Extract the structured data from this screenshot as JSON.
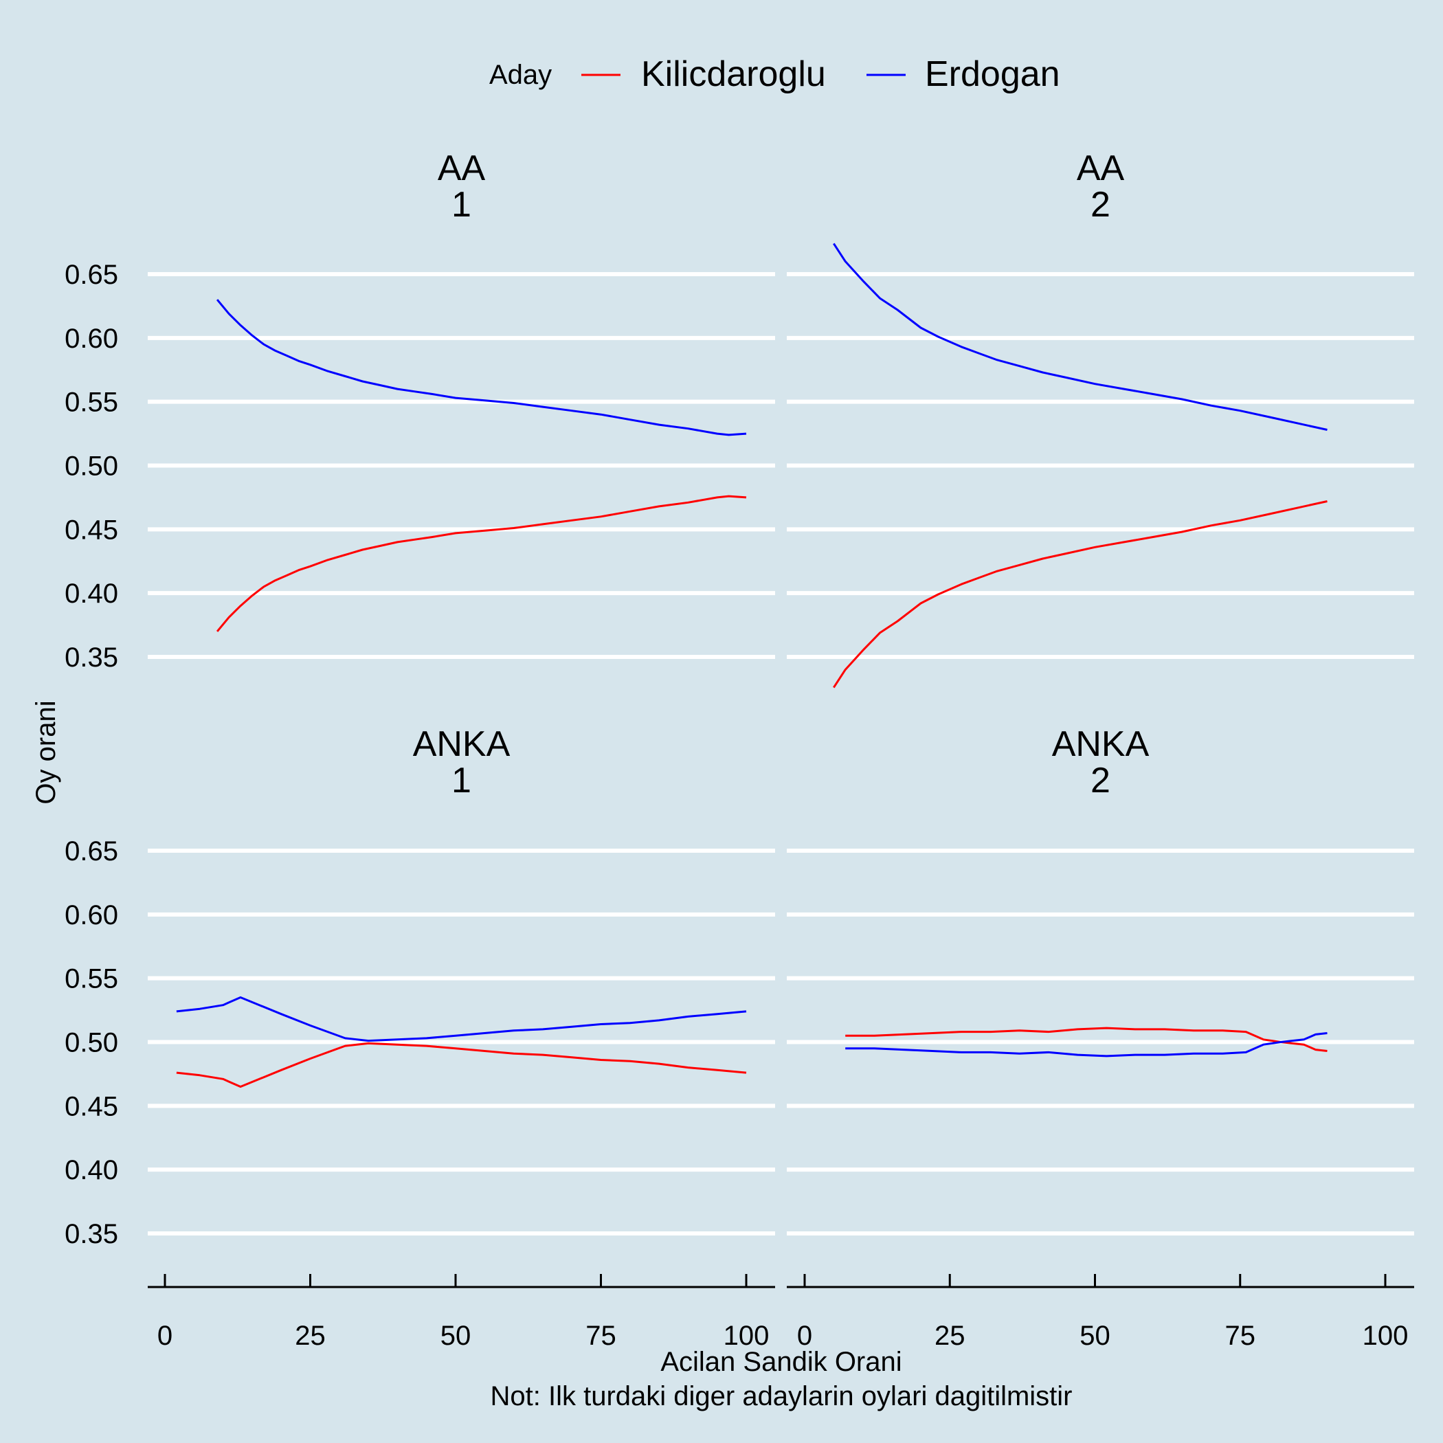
{
  "chart_data": {
    "type": "line",
    "legend": {
      "title": "Aday",
      "position": "top",
      "entries": [
        {
          "name": "Kilicdaroglu",
          "color": "#ff0000"
        },
        {
          "name": "Erdogan",
          "color": "#0000ff"
        }
      ]
    },
    "xlabel": "Acilan Sandik Orani",
    "ylabel": "Oy orani",
    "caption": "Not: Ilk turdaki diger adaylarin oylari dagitilmistir",
    "xlim": [
      0,
      100
    ],
    "ylim": [
      0.35,
      0.65
    ],
    "x_ticks": [
      "0",
      "25",
      "50",
      "75",
      "100"
    ],
    "y_ticks": [
      "0.35",
      "0.40",
      "0.45",
      "0.50",
      "0.55",
      "0.60",
      "0.65"
    ],
    "grid": "horizontal major",
    "panels": [
      {
        "source": "AA",
        "round": "1",
        "series": [
          {
            "name": "Kilicdaroglu",
            "color": "#ff0000",
            "x": [
              9,
              11,
              13,
              15,
              17,
              19,
              21,
              23,
              25,
              28,
              31,
              34,
              37,
              40,
              43,
              46,
              50,
              55,
              60,
              65,
              70,
              75,
              80,
              85,
              90,
              95,
              97,
              100
            ],
            "y": [
              0.37,
              0.381,
              0.39,
              0.398,
              0.405,
              0.41,
              0.414,
              0.418,
              0.421,
              0.426,
              0.43,
              0.434,
              0.437,
              0.44,
              0.442,
              0.444,
              0.447,
              0.449,
              0.451,
              0.454,
              0.457,
              0.46,
              0.464,
              0.468,
              0.471,
              0.475,
              0.476,
              0.475
            ]
          },
          {
            "name": "Erdogan",
            "color": "#0000ff",
            "x": [
              9,
              11,
              13,
              15,
              17,
              19,
              21,
              23,
              25,
              28,
              31,
              34,
              37,
              40,
              43,
              46,
              50,
              55,
              60,
              65,
              70,
              75,
              80,
              85,
              90,
              95,
              97,
              100
            ],
            "y": [
              0.63,
              0.619,
              0.61,
              0.602,
              0.595,
              0.59,
              0.586,
              0.582,
              0.579,
              0.574,
              0.57,
              0.566,
              0.563,
              0.56,
              0.558,
              0.556,
              0.553,
              0.551,
              0.549,
              0.546,
              0.543,
              0.54,
              0.536,
              0.532,
              0.529,
              0.525,
              0.524,
              0.525
            ]
          }
        ]
      },
      {
        "source": "AA",
        "round": "2",
        "series": [
          {
            "name": "Kilicdaroglu",
            "color": "#ff0000",
            "x": [
              5,
              7,
              10,
              13,
              16,
              20,
              23,
              27,
              30,
              33,
              37,
              41,
              45,
              50,
              55,
              60,
              65,
              70,
              75,
              80,
              85,
              90
            ],
            "y": [
              0.326,
              0.34,
              0.355,
              0.369,
              0.378,
              0.392,
              0.399,
              0.407,
              0.412,
              0.417,
              0.422,
              0.427,
              0.431,
              0.436,
              0.44,
              0.444,
              0.448,
              0.453,
              0.457,
              0.462,
              0.467,
              0.472
            ]
          },
          {
            "name": "Erdogan",
            "color": "#0000ff",
            "x": [
              5,
              7,
              10,
              13,
              16,
              20,
              23,
              27,
              30,
              33,
              37,
              41,
              45,
              50,
              55,
              60,
              65,
              70,
              75,
              80,
              85,
              90
            ],
            "y": [
              0.674,
              0.66,
              0.645,
              0.631,
              0.622,
              0.608,
              0.601,
              0.593,
              0.588,
              0.583,
              0.578,
              0.573,
              0.569,
              0.564,
              0.56,
              0.556,
              0.552,
              0.547,
              0.543,
              0.538,
              0.533,
              0.528
            ]
          }
        ]
      },
      {
        "source": "ANKA",
        "round": "1",
        "series": [
          {
            "name": "Kilicdaroglu",
            "color": "#ff0000",
            "x": [
              2,
              6,
              10,
              11,
              13,
              20,
              25,
              31,
              35,
              40,
              45,
              50,
              55,
              60,
              65,
              70,
              75,
              80,
              85,
              90,
              95,
              100
            ],
            "y": [
              0.476,
              0.474,
              0.471,
              0.469,
              0.465,
              0.478,
              0.487,
              0.497,
              0.499,
              0.498,
              0.497,
              0.495,
              0.493,
              0.491,
              0.49,
              0.488,
              0.486,
              0.485,
              0.483,
              0.48,
              0.478,
              0.476
            ]
          },
          {
            "name": "Erdogan",
            "color": "#0000ff",
            "x": [
              2,
              6,
              10,
              11,
              13,
              20,
              25,
              31,
              35,
              40,
              45,
              50,
              55,
              60,
              65,
              70,
              75,
              80,
              85,
              90,
              95,
              100
            ],
            "y": [
              0.524,
              0.526,
              0.529,
              0.531,
              0.535,
              0.522,
              0.513,
              0.503,
              0.501,
              0.502,
              0.503,
              0.505,
              0.507,
              0.509,
              0.51,
              0.512,
              0.514,
              0.515,
              0.517,
              0.52,
              0.522,
              0.524
            ]
          }
        ]
      },
      {
        "source": "ANKA",
        "round": "2",
        "series": [
          {
            "name": "Kilicdaroglu",
            "color": "#ff0000",
            "x": [
              7,
              12,
              17,
              22,
              27,
              32,
              37,
              42,
              47,
              52,
              57,
              62,
              67,
              72,
              76,
              79,
              82,
              86,
              88,
              90
            ],
            "y": [
              0.505,
              0.505,
              0.506,
              0.507,
              0.508,
              0.508,
              0.509,
              0.508,
              0.51,
              0.511,
              0.51,
              0.51,
              0.509,
              0.509,
              0.508,
              0.502,
              0.5,
              0.498,
              0.494,
              0.493
            ]
          },
          {
            "name": "Erdogan",
            "color": "#0000ff",
            "x": [
              7,
              12,
              17,
              22,
              27,
              32,
              37,
              42,
              47,
              52,
              57,
              62,
              67,
              72,
              76,
              79,
              82,
              86,
              88,
              90
            ],
            "y": [
              0.495,
              0.495,
              0.494,
              0.493,
              0.492,
              0.492,
              0.491,
              0.492,
              0.49,
              0.489,
              0.49,
              0.49,
              0.491,
              0.491,
              0.492,
              0.498,
              0.5,
              0.502,
              0.506,
              0.507
            ]
          }
        ]
      }
    ]
  }
}
